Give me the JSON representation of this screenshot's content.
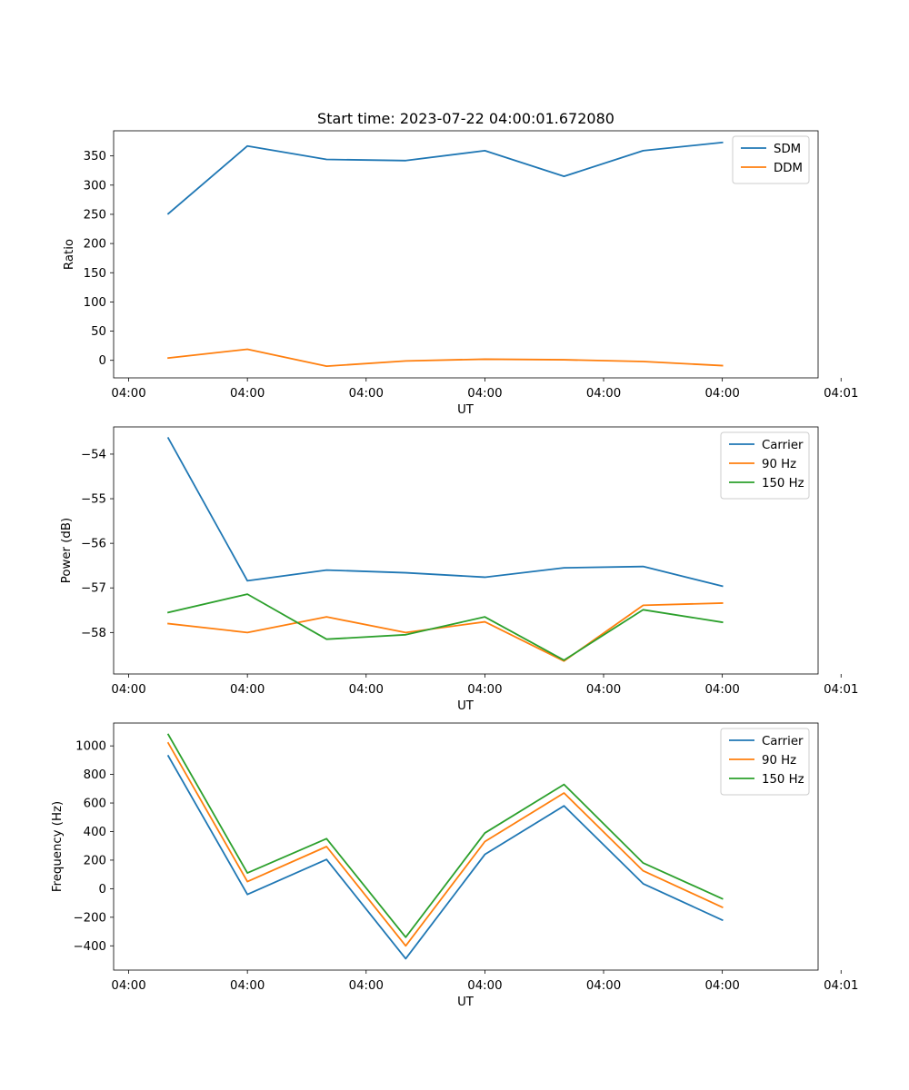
{
  "figure_title": "Start time: 2023-07-22 04:00:01.672080",
  "colors": {
    "blue": "#1f77b4",
    "orange": "#ff7f0e",
    "green": "#2ca02c"
  },
  "chart_data": [
    {
      "type": "line",
      "title": "Start time: 2023-07-22 04:00:01.672080",
      "xlabel": "UT",
      "ylabel": "Ratio",
      "x": [
        1,
        2,
        3,
        4,
        5,
        6,
        7,
        8
      ],
      "xlim": [
        0.31,
        9.21
      ],
      "xticks": [
        0.5,
        2,
        3.5,
        5,
        6.5,
        8,
        9.5
      ],
      "xtick_labels": [
        "04:00",
        "04:00",
        "04:00",
        "04:00",
        "04:00",
        "04:00",
        "04:01"
      ],
      "ylim": [
        -30,
        393
      ],
      "yticks": [
        0,
        50,
        100,
        150,
        200,
        250,
        300,
        350
      ],
      "ytick_labels": [
        "0",
        "50",
        "100",
        "150",
        "200",
        "250",
        "300",
        "350"
      ],
      "legend": "top-right",
      "series": [
        {
          "name": "SDM",
          "color": "#1f77b4",
          "values": [
            251,
            367,
            344,
            342,
            359,
            315,
            359,
            373
          ]
        },
        {
          "name": "DDM",
          "color": "#ff7f0e",
          "values": [
            4,
            19,
            -10,
            -1,
            2,
            1,
            -2,
            -9
          ]
        }
      ]
    },
    {
      "type": "line",
      "title": "",
      "xlabel": "UT",
      "ylabel": "Power (dB)",
      "x": [
        1,
        2,
        3,
        4,
        5,
        6,
        7,
        8
      ],
      "xlim": [
        0.31,
        9.21
      ],
      "xticks": [
        0.5,
        2,
        3.5,
        5,
        6.5,
        8,
        9.5
      ],
      "xtick_labels": [
        "04:00",
        "04:00",
        "04:00",
        "04:00",
        "04:00",
        "04:00",
        "04:01"
      ],
      "ylim": [
        -58.93,
        -53.39
      ],
      "yticks": [
        -58,
        -57,
        -56,
        -55,
        -54
      ],
      "ytick_labels": [
        "−58",
        "−57",
        "−56",
        "−55",
        "−54"
      ],
      "legend": "top-right",
      "series": [
        {
          "name": "Carrier",
          "color": "#1f77b4",
          "values": [
            -53.64,
            -56.84,
            -56.6,
            -56.66,
            -56.76,
            -56.55,
            -56.52,
            -56.96
          ]
        },
        {
          "name": "90 Hz",
          "color": "#ff7f0e",
          "values": [
            -57.8,
            -58.0,
            -57.65,
            -58.0,
            -57.76,
            -58.64,
            -57.39,
            -57.34
          ]
        },
        {
          "name": "150 Hz",
          "color": "#2ca02c",
          "values": [
            -57.55,
            -57.14,
            -58.15,
            -58.05,
            -57.65,
            -58.62,
            -57.49,
            -57.77
          ]
        }
      ]
    },
    {
      "type": "line",
      "title": "",
      "xlabel": "UT",
      "ylabel": "Frequency (Hz)",
      "x": [
        1,
        2,
        3,
        4,
        5,
        6,
        7,
        8
      ],
      "xlim": [
        0.31,
        9.21
      ],
      "xticks": [
        0.5,
        2,
        3.5,
        5,
        6.5,
        8,
        9.5
      ],
      "xtick_labels": [
        "04:00",
        "04:00",
        "04:00",
        "04:00",
        "04:00",
        "04:00",
        "04:01"
      ],
      "ylim": [
        -570,
        1160
      ],
      "yticks": [
        -400,
        -200,
        0,
        200,
        400,
        600,
        800,
        1000
      ],
      "ytick_labels": [
        "−400",
        "−200",
        "0",
        "200",
        "400",
        "600",
        "800",
        "1000"
      ],
      "legend": "top-right",
      "series": [
        {
          "name": "Carrier",
          "color": "#1f77b4",
          "values": [
            930,
            -40,
            205,
            -490,
            240,
            580,
            35,
            -220
          ]
        },
        {
          "name": "90 Hz",
          "color": "#ff7f0e",
          "values": [
            1020,
            50,
            295,
            -400,
            330,
            670,
            125,
            -130
          ]
        },
        {
          "name": "150 Hz",
          "color": "#2ca02c",
          "values": [
            1080,
            110,
            350,
            -340,
            390,
            730,
            180,
            -70
          ]
        }
      ]
    }
  ]
}
